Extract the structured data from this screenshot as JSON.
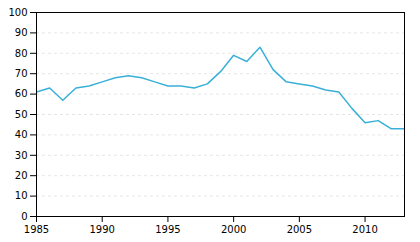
{
  "chart_data": {
    "type": "line",
    "x": [
      1985,
      1986,
      1987,
      1988,
      1989,
      1990,
      1991,
      1992,
      1993,
      1994,
      1995,
      1996,
      1997,
      1998,
      1999,
      2000,
      2001,
      2002,
      2003,
      2004,
      2005,
      2006,
      2007,
      2008,
      2009,
      2010,
      2011,
      2012,
      2013
    ],
    "values": [
      61,
      63,
      57,
      63,
      64,
      66,
      68,
      69,
      68,
      66,
      64,
      64,
      63,
      65,
      71,
      79,
      76,
      83,
      72,
      66,
      65,
      64,
      62,
      61,
      53,
      46,
      47,
      43,
      43
    ],
    "color": "#3ab0d8",
    "xlim": [
      1985,
      2013
    ],
    "xticks": [
      1985,
      1990,
      1995,
      2000,
      2005,
      2010
    ],
    "ylim": [
      0,
      100
    ],
    "yticks": [
      0,
      10,
      20,
      30,
      40,
      50,
      60,
      70,
      80,
      90,
      100
    ],
    "grid": true
  }
}
